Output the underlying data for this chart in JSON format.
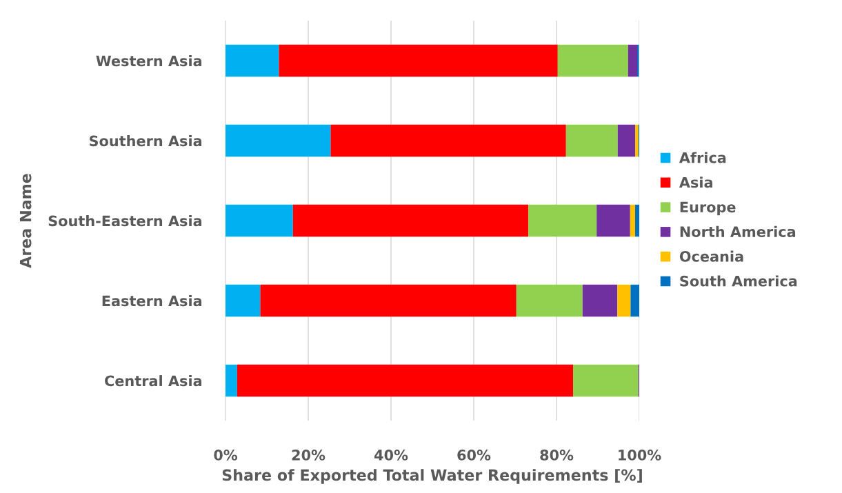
{
  "chart_data": {
    "type": "bar",
    "orientation": "horizontal",
    "stacked": true,
    "xlabel": "Share of Exported Total Water Requirements [%]",
    "ylabel": "Area Name",
    "categories": [
      "Western Asia",
      "Southern Asia",
      "South-Eastern Asia",
      "Eastern Asia",
      "Central Asia"
    ],
    "series": [
      {
        "name": "Africa",
        "color": "#00b0f0",
        "values": [
          12.9,
          25.4,
          16.3,
          8.4,
          2.8
        ]
      },
      {
        "name": "Asia",
        "color": "#ff0000",
        "values": [
          67.4,
          56.9,
          56.9,
          61.9,
          81.2
        ]
      },
      {
        "name": "Europe",
        "color": "#92d050",
        "values": [
          17.0,
          12.5,
          16.5,
          16.0,
          15.8
        ]
      },
      {
        "name": "North America",
        "color": "#7030a0",
        "values": [
          2.2,
          4.2,
          8.1,
          8.4,
          0.2
        ]
      },
      {
        "name": "Oceania",
        "color": "#ffc000",
        "values": [
          null,
          0.8,
          1.2,
          3.2,
          0
        ]
      },
      {
        "name": "South America",
        "color": "#0070c0",
        "values": [
          0.4,
          0.2,
          1.0,
          2.1,
          0
        ]
      }
    ],
    "xlim": [
      0,
      100
    ],
    "xticks": [
      {
        "value": 0,
        "label": "0%"
      },
      {
        "value": 20,
        "label": "20%"
      },
      {
        "value": 40,
        "label": "40%"
      },
      {
        "value": 60,
        "label": "60%"
      },
      {
        "value": 80,
        "label": "80%"
      },
      {
        "value": 100,
        "label": "100%"
      }
    ],
    "grid": "x",
    "legend": "right"
  }
}
